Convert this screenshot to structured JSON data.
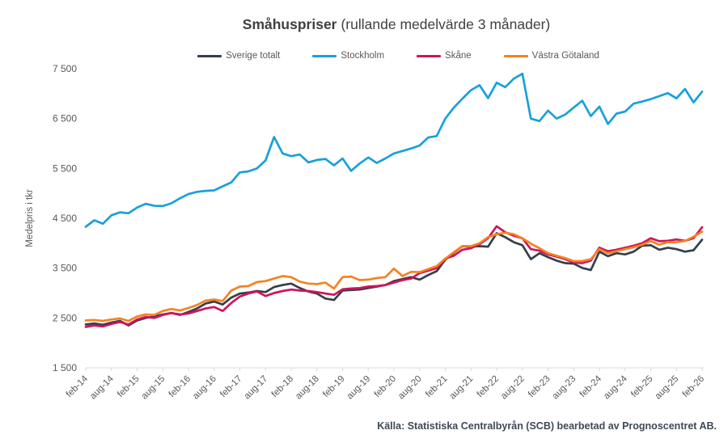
{
  "footer": {
    "source": "Källa: Statistiska Centralbyrån (SCB) bearbetad av Prognoscentret AB."
  },
  "colors": {
    "axis": "#D9D9D9",
    "tick_text": "#595959",
    "title_text": "#404040",
    "footer_text": "#3E4957",
    "background": "#FFFFFF"
  },
  "chart_data": {
    "type": "line",
    "title": "Småhuspriser",
    "subtitle": "(rullande medelvärde 3 månader)",
    "ylabel": "Medelpris i tkr",
    "ylim": [
      1500,
      7500
    ],
    "ytick_step": 1000,
    "ytick_labels": [
      "1 500",
      "2 500",
      "3 500",
      "4 500",
      "5 500",
      "6 500",
      "7 500"
    ],
    "x_tick_labels": [
      "feb-14",
      "aug-14",
      "feb-15",
      "aug-15",
      "feb-16",
      "aug-16",
      "feb-17",
      "aug-17",
      "feb-18",
      "aug-18",
      "feb-19",
      "aug-19",
      "feb-20",
      "aug-20",
      "feb-21",
      "aug-21",
      "feb-22",
      "aug-22",
      "feb-23",
      "aug-23",
      "feb-24",
      "aug-24",
      "feb-25",
      "aug-25",
      "feb-26"
    ],
    "samples_between_ticks": 3,
    "sampling": "one value every 2 months, feb-14 through feb-26",
    "legend_position": "top",
    "grid": false,
    "series": [
      {
        "name": "Sverige totalt",
        "color": "#343F4B",
        "values": [
          2370,
          2390,
          2365,
          2410,
          2440,
          2350,
          2450,
          2500,
          2530,
          2570,
          2600,
          2560,
          2620,
          2690,
          2790,
          2830,
          2770,
          2910,
          2990,
          3010,
          3040,
          3020,
          3120,
          3160,
          3190,
          3100,
          3030,
          2990,
          2890,
          2860,
          3050,
          3060,
          3070,
          3100,
          3130,
          3160,
          3240,
          3280,
          3320,
          3270,
          3360,
          3440,
          3670,
          3810,
          3940,
          3930,
          3940,
          3930,
          4200,
          4120,
          4020,
          3960,
          3680,
          3800,
          3720,
          3650,
          3600,
          3590,
          3505,
          3460,
          3830,
          3740,
          3800,
          3775,
          3830,
          3950,
          3960,
          3870,
          3910,
          3880,
          3830,
          3860,
          4070
        ]
      },
      {
        "name": "Stockholm",
        "color": "#19A0DB",
        "values": [
          4330,
          4460,
          4390,
          4560,
          4620,
          4600,
          4715,
          4790,
          4750,
          4745,
          4800,
          4900,
          4985,
          5030,
          5050,
          5060,
          5140,
          5220,
          5420,
          5440,
          5500,
          5660,
          6130,
          5800,
          5745,
          5780,
          5620,
          5670,
          5690,
          5560,
          5700,
          5450,
          5600,
          5720,
          5610,
          5700,
          5800,
          5850,
          5900,
          5960,
          6120,
          6150,
          6500,
          6720,
          6900,
          7070,
          7170,
          6910,
          7220,
          7130,
          7300,
          7400,
          6500,
          6450,
          6660,
          6500,
          6580,
          6720,
          6860,
          6550,
          6740,
          6390,
          6600,
          6640,
          6800,
          6840,
          6890,
          6950,
          7010,
          6905,
          7095,
          6825,
          7040
        ]
      },
      {
        "name": "Skåne",
        "color": "#D1135B",
        "values": [
          2320,
          2350,
          2330,
          2380,
          2420,
          2370,
          2470,
          2520,
          2500,
          2560,
          2600,
          2570,
          2590,
          2640,
          2690,
          2720,
          2640,
          2800,
          2930,
          2990,
          3030,
          2940,
          3000,
          3040,
          3070,
          3050,
          3040,
          3020,
          2990,
          2965,
          3075,
          3090,
          3100,
          3130,
          3140,
          3160,
          3210,
          3260,
          3290,
          3400,
          3450,
          3500,
          3690,
          3750,
          3870,
          3900,
          3980,
          4100,
          4340,
          4220,
          4150,
          4100,
          3880,
          3850,
          3775,
          3730,
          3680,
          3615,
          3600,
          3650,
          3910,
          3840,
          3870,
          3910,
          3950,
          4000,
          4100,
          4040,
          4050,
          4075,
          4050,
          4100,
          4320
        ]
      },
      {
        "name": "Västra Götaland",
        "color": "#F58220",
        "values": [
          2450,
          2460,
          2440,
          2470,
          2490,
          2440,
          2530,
          2570,
          2560,
          2640,
          2680,
          2650,
          2700,
          2760,
          2850,
          2870,
          2840,
          3050,
          3130,
          3140,
          3220,
          3240,
          3290,
          3340,
          3320,
          3230,
          3190,
          3180,
          3210,
          3090,
          3320,
          3330,
          3260,
          3270,
          3300,
          3320,
          3490,
          3340,
          3425,
          3420,
          3480,
          3540,
          3690,
          3820,
          3940,
          3940,
          4000,
          4120,
          4180,
          4210,
          4180,
          4100,
          3990,
          3900,
          3800,
          3750,
          3700,
          3640,
          3640,
          3680,
          3880,
          3800,
          3840,
          3880,
          3920,
          3970,
          4045,
          3970,
          4020,
          4020,
          4045,
          4130,
          4230
        ]
      }
    ]
  }
}
